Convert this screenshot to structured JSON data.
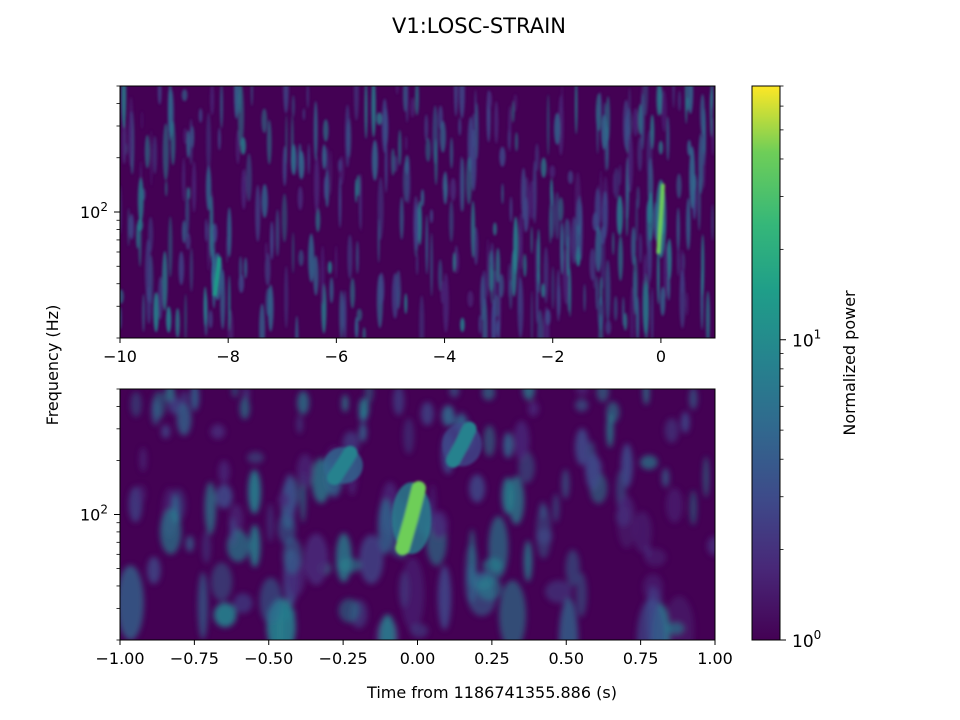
{
  "title": "V1:LOSC-STRAIN",
  "chart_data": [
    {
      "type": "heatmap",
      "panel": "top",
      "description_of_content": "Q-transform spectrogram, wide time window",
      "xlim": [
        -10,
        1
      ],
      "xticks": [
        -10,
        -8,
        -6,
        -4,
        -2,
        0
      ],
      "xtick_labels": [
        "−10",
        "−8",
        "−6",
        "−4",
        "−2",
        "0"
      ],
      "ylabel": "Frequency (Hz)",
      "yscale": "log",
      "ylim": [
        20,
        500
      ],
      "ytick_value": 100,
      "ytick_label_base": "10",
      "ytick_label_exp": "2",
      "hotspots": [
        {
          "t": 0.0,
          "f_low": 60,
          "f_high": 140,
          "power": 38
        },
        {
          "t": -8.2,
          "f_low": 35,
          "f_high": 55,
          "power": 12
        }
      ]
    },
    {
      "type": "heatmap",
      "panel": "bottom",
      "xlim": [
        -1,
        1
      ],
      "xticks": [
        -1.0,
        -0.75,
        -0.5,
        -0.25,
        0.0,
        0.25,
        0.5,
        0.75,
        1.0
      ],
      "xtick_labels": [
        "−1.00",
        "−0.75",
        "−0.50",
        "−0.25",
        "0.00",
        "0.25",
        "0.50",
        "0.75",
        "1.00"
      ],
      "xlabel": "Time from 1186741355.886 (s)",
      "yscale": "log",
      "ylim": [
        20,
        500
      ],
      "ytick_value": 100,
      "ytick_label_base": "10",
      "ytick_label_exp": "2",
      "hotspots": [
        {
          "t": -0.02,
          "f_low": 65,
          "f_high": 140,
          "power": 45
        },
        {
          "t": 0.15,
          "f_low": 200,
          "f_high": 300,
          "power": 8
        },
        {
          "t": -0.25,
          "f_low": 160,
          "f_high": 220,
          "power": 10
        }
      ]
    }
  ],
  "colorbar": {
    "label": "Normalized power",
    "scale": "log",
    "range": [
      1,
      70
    ],
    "ticks": [
      {
        "value": 1,
        "base": "10",
        "exp": "0"
      },
      {
        "value": 10,
        "base": "10",
        "exp": "1"
      }
    ]
  },
  "colors": {
    "viridis_low": "#440154",
    "viridis_mid": "#21918c",
    "viridis_high": "#fde725"
  }
}
